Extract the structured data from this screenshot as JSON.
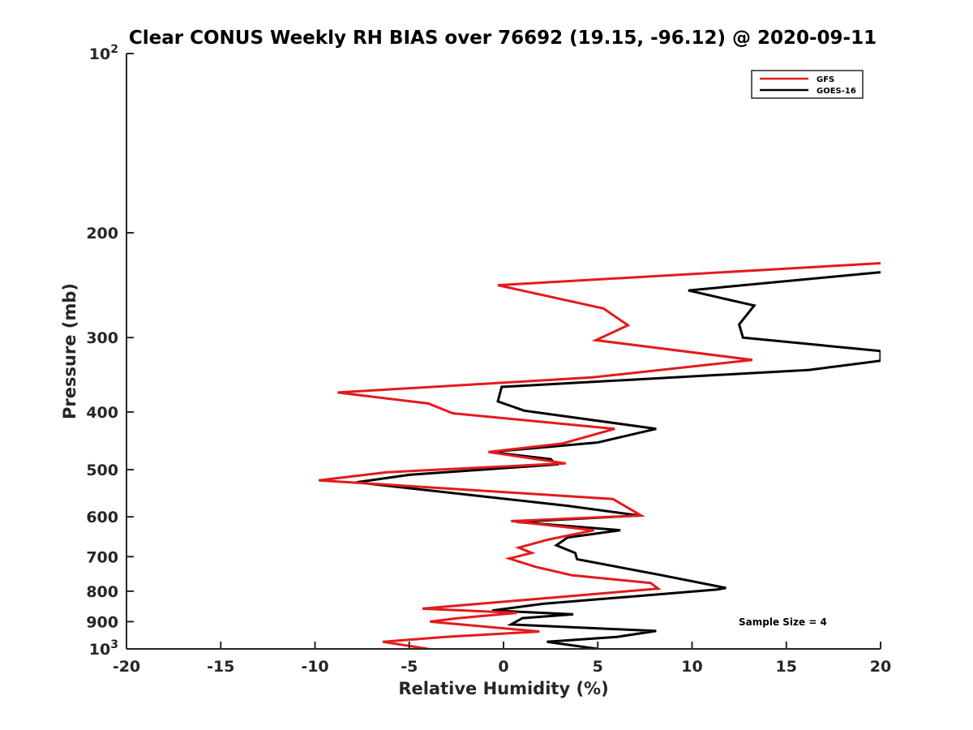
{
  "chart_data": {
    "type": "line",
    "title": "Clear CONUS Weekly RH BIAS over 76692 (19.15, -96.12) @ 2020-09-11",
    "xlabel": "Relative Humidity (%)",
    "ylabel": "Pressure (mb)",
    "xlim": [
      -20,
      20
    ],
    "ylim": [
      100,
      1000
    ],
    "yscale": "log",
    "yreversed": true,
    "xticks": [
      -20,
      -15,
      -10,
      -5,
      0,
      5,
      10,
      15,
      20
    ],
    "xtick_labels": [
      "-20",
      "-15",
      "-10",
      "-5",
      "0",
      "5",
      "10",
      "15",
      "20"
    ],
    "yticks": [
      100,
      200,
      300,
      400,
      500,
      600,
      700,
      800,
      900,
      1000
    ],
    "ytick_labels": [
      {
        "base": "10",
        "exp": "2"
      },
      {
        "base": "200",
        "exp": ""
      },
      {
        "base": "300",
        "exp": ""
      },
      {
        "base": "400",
        "exp": ""
      },
      {
        "base": "500",
        "exp": ""
      },
      {
        "base": "600",
        "exp": ""
      },
      {
        "base": "700",
        "exp": ""
      },
      {
        "base": "800",
        "exp": ""
      },
      {
        "base": "900",
        "exp": ""
      },
      {
        "base": "10",
        "exp": "3"
      }
    ],
    "legend_position": "top-right",
    "annotation": "Sample Size = 4",
    "series": [
      {
        "name": "GFS",
        "color": "#e41a1c",
        "points": [
          [
            20,
            225
          ],
          [
            -0.3,
            245
          ],
          [
            5.3,
            268
          ],
          [
            6.6,
            286
          ],
          [
            4.9,
            303
          ],
          [
            13.2,
            327
          ],
          [
            4.7,
            350
          ],
          [
            -8.8,
            371
          ],
          [
            -4.0,
            387
          ],
          [
            -2.7,
            402
          ],
          [
            5.9,
            427
          ],
          [
            3.1,
            452
          ],
          [
            -0.8,
            467
          ],
          [
            3.3,
            488
          ],
          [
            -6.2,
            505
          ],
          [
            -9.8,
            521
          ],
          [
            5.8,
            560
          ],
          [
            7.3,
            597
          ],
          [
            0.4,
            610
          ],
          [
            4.8,
            632
          ],
          [
            2.4,
            655
          ],
          [
            0.8,
            676
          ],
          [
            1.5,
            690
          ],
          [
            0.3,
            705
          ],
          [
            1.7,
            728
          ],
          [
            3.6,
            752
          ],
          [
            7.8,
            775
          ],
          [
            8.2,
            792
          ],
          [
            3.0,
            818
          ],
          [
            -1.3,
            840
          ],
          [
            -4.3,
            856
          ],
          [
            0.7,
            870
          ],
          [
            -2.4,
            888
          ],
          [
            -3.9,
            900
          ],
          [
            1.9,
            935
          ],
          [
            -3.1,
            955
          ],
          [
            -6.4,
            973
          ],
          [
            -4.0,
            1000
          ]
        ]
      },
      {
        "name": "GOES-16",
        "color": "#000000",
        "points": [
          [
            20,
            233
          ],
          [
            9.8,
            250
          ],
          [
            13.3,
            265
          ],
          [
            12.5,
            285
          ],
          [
            12.7,
            300
          ],
          [
            20,
            316
          ],
          [
            20,
            328
          ],
          [
            16.2,
            340
          ],
          [
            -0.1,
            363
          ],
          [
            -0.3,
            384
          ],
          [
            1.1,
            398
          ],
          [
            8.1,
            427
          ],
          [
            5.0,
            450
          ],
          [
            -0.7,
            467
          ],
          [
            2.5,
            480
          ],
          [
            2.8,
            490
          ],
          [
            -5.0,
            510
          ],
          [
            -7.8,
            525
          ],
          [
            3.4,
            575
          ],
          [
            7.2,
            597
          ],
          [
            0.7,
            612
          ],
          [
            6.2,
            632
          ],
          [
            3.4,
            650
          ],
          [
            2.8,
            670
          ],
          [
            3.8,
            690
          ],
          [
            3.9,
            707
          ],
          [
            8.2,
            750
          ],
          [
            11.8,
            790
          ],
          [
            11.3,
            795
          ],
          [
            2.1,
            840
          ],
          [
            -0.6,
            862
          ],
          [
            3.7,
            875
          ],
          [
            1.0,
            888
          ],
          [
            0.4,
            910
          ],
          [
            8.1,
            933
          ],
          [
            6.0,
            955
          ],
          [
            2.3,
            973
          ],
          [
            5.0,
            1000
          ]
        ]
      }
    ]
  }
}
